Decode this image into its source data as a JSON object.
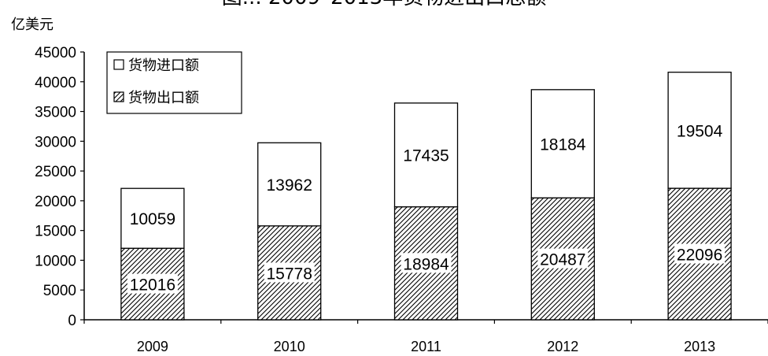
{
  "chart_data": {
    "type": "bar",
    "stacked": true,
    "title": "图... 2009–2013年货物进出口总额",
    "ylabel": "亿美元",
    "xlabel": "",
    "categories": [
      "2009",
      "2010",
      "2011",
      "2012",
      "2013"
    ],
    "series": [
      {
        "name": "货物出口额",
        "values": [
          12016,
          15778,
          18984,
          20487,
          22096
        ],
        "pattern": "hatched"
      },
      {
        "name": "货物进口额",
        "values": [
          10059,
          13962,
          17435,
          18184,
          19504
        ],
        "pattern": "white"
      }
    ],
    "ylim": [
      0,
      45000
    ],
    "yticks": [
      0,
      5000,
      10000,
      15000,
      20000,
      25000,
      30000,
      35000,
      40000,
      45000
    ],
    "legend_position": "top-left",
    "legend_order": [
      "货物进口额",
      "货物出口额"
    ],
    "grid": false,
    "colors": {
      "bar_stroke": "#000000",
      "hatch": "#000000",
      "fill_white": "#ffffff",
      "background": "#ffffff"
    }
  }
}
